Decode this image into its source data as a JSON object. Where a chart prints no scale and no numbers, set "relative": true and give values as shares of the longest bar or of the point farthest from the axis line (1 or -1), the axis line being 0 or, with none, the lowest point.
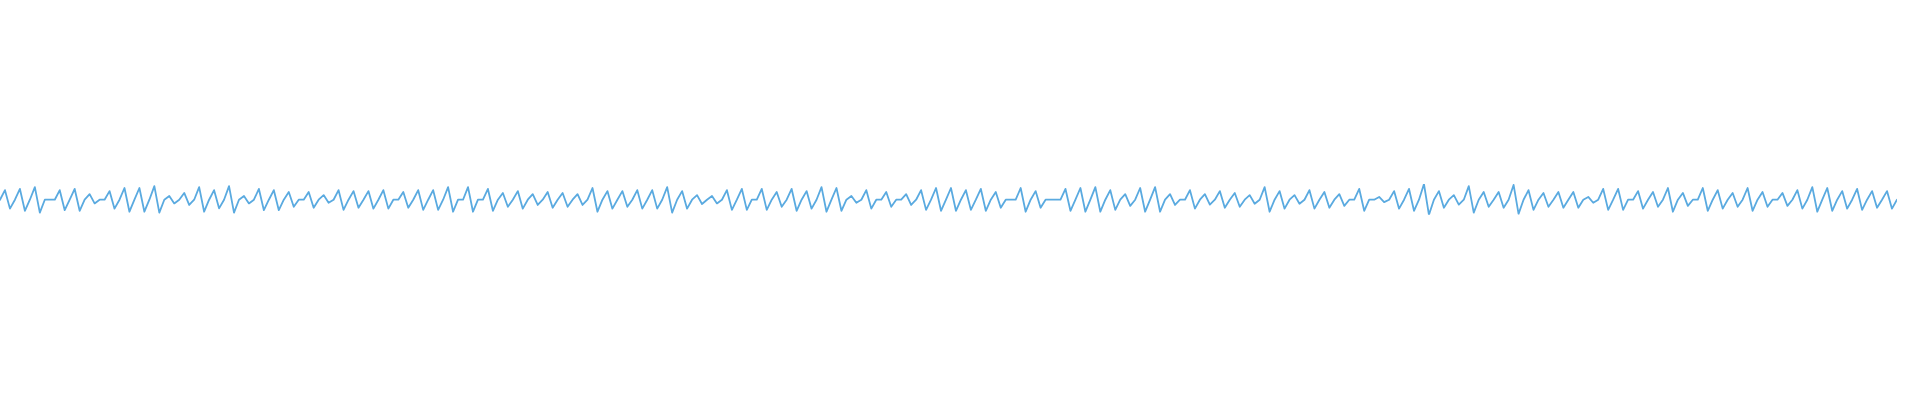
{
  "chart_data": {
    "type": "line",
    "relative": true,
    "grid": false,
    "legend": false,
    "marker": "none",
    "line_style": "solid",
    "categories": [
      null,
      null,
      null,
      null,
      null,
      null,
      null,
      null,
      null,
      null,
      null,
      null,
      null,
      null,
      null,
      null,
      null,
      null,
      null,
      null,
      null,
      null,
      null,
      null,
      null,
      null,
      null,
      null,
      null,
      null,
      null,
      null,
      null,
      null,
      null,
      null,
      null,
      null,
      null,
      null,
      null,
      null,
      null,
      null,
      null,
      null,
      null,
      null,
      null,
      null,
      null,
      null,
      null,
      null,
      null,
      null,
      null,
      null,
      null,
      null,
      null,
      null,
      null,
      null,
      null,
      null,
      null,
      null,
      null,
      null,
      null,
      null,
      null,
      null,
      null,
      null,
      null,
      null,
      null,
      null,
      null,
      null,
      null,
      null,
      null,
      null,
      null,
      null,
      null,
      null,
      null,
      null,
      null,
      null,
      null,
      null,
      null,
      null,
      null,
      null,
      null,
      null,
      null,
      null,
      null,
      null,
      null,
      null,
      null,
      null,
      null,
      null,
      null,
      null,
      null,
      null,
      null,
      null,
      null,
      null,
      null,
      null,
      null,
      null,
      null,
      null,
      null,
      null,
      null,
      null,
      null,
      null,
      null,
      null,
      null,
      null,
      null,
      null,
      null,
      null,
      null,
      null,
      null,
      null,
      null,
      null,
      null,
      null,
      null,
      null,
      null,
      null,
      null,
      null,
      null,
      null,
      null,
      null,
      null,
      null,
      null,
      null,
      null,
      null,
      null,
      null,
      null,
      null,
      null,
      null,
      null,
      null,
      null,
      null,
      null,
      null,
      null,
      null,
      null,
      null,
      null,
      null,
      null,
      null,
      null,
      null,
      null,
      null,
      null,
      null,
      null,
      null,
      null,
      null,
      null,
      null,
      null,
      null,
      null,
      null,
      null,
      null,
      null,
      null,
      null,
      null,
      null,
      null,
      null,
      null,
      null,
      null,
      null,
      null,
      null,
      null,
      null,
      null,
      null,
      null,
      null,
      null,
      null,
      null,
      null,
      null,
      null,
      null,
      null,
      null,
      null,
      null,
      null,
      null,
      null,
      null,
      null,
      null,
      null,
      null,
      null,
      null,
      null,
      null,
      null,
      null,
      null,
      null,
      null,
      null,
      null,
      null,
      null,
      null,
      null,
      null,
      null,
      null,
      null,
      null,
      null,
      null,
      null,
      null,
      null,
      null,
      null,
      null,
      null,
      null,
      null,
      null,
      null,
      null,
      null,
      null,
      null,
      null,
      null,
      null,
      null,
      null,
      null,
      null,
      null,
      null,
      null,
      null,
      null,
      null,
      null,
      null,
      null,
      null,
      null,
      null,
      null,
      null,
      null,
      null,
      null,
      null,
      null,
      null,
      null,
      null,
      null,
      null,
      null,
      null,
      null,
      null,
      null,
      null,
      null,
      null,
      null,
      null,
      null,
      null,
      null,
      null,
      null,
      null,
      null,
      null,
      null,
      null,
      null,
      null,
      null,
      null,
      null,
      null,
      null,
      null,
      null,
      null,
      null,
      null,
      null,
      null,
      null,
      null,
      null,
      null,
      null,
      null,
      null,
      null,
      null,
      null,
      null,
      null,
      null,
      null,
      null,
      null,
      null,
      null,
      null,
      null,
      null,
      null,
      null,
      null,
      null,
      null,
      null,
      null,
      null,
      null,
      null,
      null,
      null,
      null,
      null,
      null,
      null,
      null,
      null,
      null
    ],
    "series": [
      {
        "color": "#5aaae0",
        "values": [
          0.49,
          0.8,
          0.2,
          0.49,
          0.84,
          0.13,
          0.49,
          0.9,
          0.07,
          0.49,
          0.49,
          0.49,
          0.8,
          0.15,
          0.49,
          0.84,
          0.13,
          0.49,
          0.67,
          0.37,
          0.49,
          0.49,
          0.77,
          0.2,
          0.49,
          0.87,
          0.1,
          0.49,
          0.87,
          0.1,
          0.49,
          0.93,
          0.07,
          0.49,
          0.61,
          0.37,
          0.49,
          0.71,
          0.32,
          0.49,
          0.9,
          0.1,
          0.49,
          0.8,
          0.21,
          0.49,
          0.93,
          0.07,
          0.49,
          0.61,
          0.37,
          0.49,
          0.84,
          0.15,
          0.49,
          0.8,
          0.15,
          0.49,
          0.74,
          0.26,
          0.49,
          0.49,
          0.74,
          0.23,
          0.49,
          0.64,
          0.39,
          0.49,
          0.8,
          0.16,
          0.49,
          0.77,
          0.23,
          0.49,
          0.77,
          0.2,
          0.49,
          0.8,
          0.2,
          0.49,
          0.49,
          0.74,
          0.23,
          0.49,
          0.8,
          0.16,
          0.49,
          0.8,
          0.16,
          0.49,
          0.9,
          0.1,
          0.49,
          0.49,
          0.9,
          0.1,
          0.49,
          0.49,
          0.84,
          0.13,
          0.49,
          0.71,
          0.26,
          0.49,
          0.77,
          0.2,
          0.49,
          0.67,
          0.32,
          0.49,
          0.74,
          0.23,
          0.49,
          0.71,
          0.26,
          0.49,
          0.67,
          0.32,
          0.49,
          0.87,
          0.1,
          0.49,
          0.77,
          0.2,
          0.49,
          0.77,
          0.26,
          0.49,
          0.8,
          0.2,
          0.49,
          0.8,
          0.2,
          0.49,
          0.9,
          0.07,
          0.49,
          0.77,
          0.2,
          0.49,
          0.64,
          0.35,
          0.49,
          0.61,
          0.37,
          0.49,
          0.8,
          0.16,
          0.49,
          0.84,
          0.16,
          0.49,
          0.49,
          0.84,
          0.16,
          0.49,
          0.74,
          0.26,
          0.49,
          0.84,
          0.13,
          0.49,
          0.77,
          0.2,
          0.49,
          0.9,
          0.1,
          0.49,
          0.87,
          0.13,
          0.49,
          0.61,
          0.39,
          0.49,
          0.8,
          0.2,
          0.49,
          0.49,
          0.74,
          0.26,
          0.49,
          0.49,
          0.67,
          0.32,
          0.49,
          0.8,
          0.16,
          0.49,
          0.87,
          0.13,
          0.49,
          0.87,
          0.13,
          0.49,
          0.8,
          0.16,
          0.49,
          0.84,
          0.13,
          0.49,
          0.74,
          0.23,
          0.49,
          0.49,
          0.49,
          0.87,
          0.1,
          0.49,
          0.77,
          0.23,
          0.49,
          0.49,
          0.49,
          0.49,
          0.84,
          0.13,
          0.49,
          0.87,
          0.1,
          0.49,
          0.9,
          0.1,
          0.49,
          0.8,
          0.16,
          0.49,
          0.67,
          0.29,
          0.49,
          0.87,
          0.1,
          0.49,
          0.9,
          0.1,
          0.49,
          0.67,
          0.32,
          0.49,
          0.49,
          0.8,
          0.2,
          0.49,
          0.67,
          0.33,
          0.49,
          0.77,
          0.23,
          0.49,
          0.71,
          0.26,
          0.49,
          0.64,
          0.36,
          0.49,
          0.9,
          0.1,
          0.49,
          0.77,
          0.2,
          0.49,
          0.64,
          0.36,
          0.49,
          0.8,
          0.2,
          0.49,
          0.74,
          0.23,
          0.49,
          0.67,
          0.29,
          0.49,
          0.49,
          0.84,
          0.13,
          0.49,
          0.49,
          0.58,
          0.41,
          0.49,
          0.77,
          0.2,
          0.49,
          0.84,
          0.13,
          0.49,
          1.0,
          0.0,
          0.49,
          0.77,
          0.23,
          0.49,
          0.64,
          0.33,
          0.49,
          0.93,
          0.07,
          0.49,
          0.74,
          0.26,
          0.49,
          0.74,
          0.23,
          0.49,
          0.97,
          0.03,
          0.49,
          0.8,
          0.16,
          0.49,
          0.71,
          0.26,
          0.49,
          0.74,
          0.23,
          0.49,
          0.74,
          0.23,
          0.49,
          0.58,
          0.39,
          0.49,
          0.84,
          0.16,
          0.49,
          0.84,
          0.16,
          0.49,
          0.49,
          0.77,
          0.2,
          0.49,
          0.74,
          0.26,
          0.49,
          0.87,
          0.1,
          0.49,
          0.71,
          0.29,
          0.49,
          0.49,
          0.87,
          0.13,
          0.49,
          0.8,
          0.2,
          0.49,
          0.71,
          0.26,
          0.49,
          0.87,
          0.13,
          0.49,
          0.74,
          0.26,
          0.49,
          0.49,
          0.71,
          0.29,
          0.49,
          0.8,
          0.2,
          0.49,
          0.9,
          0.1,
          0.49,
          0.87,
          0.13,
          0.49,
          0.77,
          0.2,
          0.49,
          0.84,
          0.16,
          0.49,
          0.77,
          0.23,
          0.49,
          0.77,
          0.2,
          0.49
        ]
      }
    ]
  }
}
